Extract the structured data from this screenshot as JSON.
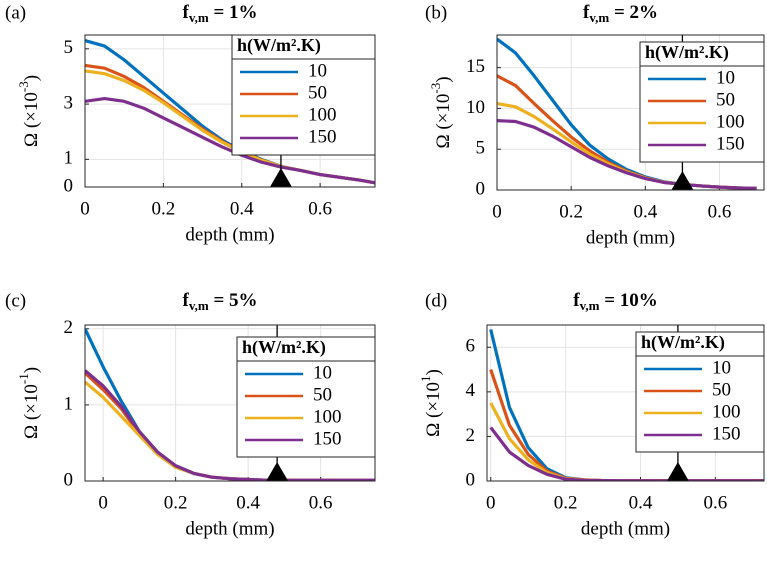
{
  "chart_data": [
    {
      "type": "line",
      "panel_label": "(a)",
      "title": {
        "text": "f",
        "sub": "v,m",
        "after": " = 1%"
      },
      "ylabel": {
        "text": "Ω (×10",
        "sup": "-3",
        "after": ")"
      },
      "xlabel": "depth (mm)",
      "x": [
        0,
        0.05,
        0.1,
        0.15,
        0.2,
        0.25,
        0.3,
        0.35,
        0.4,
        0.45,
        0.5,
        0.55,
        0.6,
        0.65,
        0.7,
        0.74
      ],
      "series": [
        {
          "name": "10",
          "color": "#0072BD",
          "values": [
            5.3,
            5.1,
            4.6,
            4.0,
            3.4,
            2.8,
            2.2,
            1.7,
            1.3,
            1.0,
            0.75,
            0.6,
            0.45,
            0.35,
            0.25,
            0.15
          ]
        },
        {
          "name": "50",
          "color": "#D95319",
          "values": [
            4.4,
            4.3,
            4.0,
            3.6,
            3.1,
            2.6,
            2.1,
            1.65,
            1.28,
            0.98,
            0.74,
            0.6,
            0.45,
            0.35,
            0.25,
            0.15
          ]
        },
        {
          "name": "100",
          "color": "#EDB120",
          "values": [
            4.2,
            4.1,
            3.85,
            3.5,
            3.05,
            2.55,
            2.05,
            1.62,
            1.26,
            0.97,
            0.74,
            0.6,
            0.45,
            0.35,
            0.25,
            0.15
          ]
        },
        {
          "name": "150",
          "color": "#7E2F8E",
          "values": [
            3.1,
            3.2,
            3.1,
            2.85,
            2.5,
            2.15,
            1.8,
            1.45,
            1.15,
            0.9,
            0.72,
            0.6,
            0.45,
            0.35,
            0.25,
            0.15
          ]
        }
      ],
      "xlim": [
        0,
        0.74
      ],
      "xticks": [
        0,
        0.2,
        0.4,
        0.6
      ],
      "ylim": [
        0,
        5.5
      ],
      "yticks": [
        0,
        1,
        3,
        5
      ],
      "grid": true,
      "legend_title": "h(W/m².K)",
      "legend": "northeast",
      "marker_x": 0.5
    },
    {
      "type": "line",
      "panel_label": "(b)",
      "title": {
        "text": "f",
        "sub": "v,m",
        "after": " = 2%"
      },
      "ylabel": {
        "text": "Ω (×10",
        "sup": "-3",
        "after": ")"
      },
      "xlabel": "depth (mm)",
      "x": [
        0,
        0.05,
        0.1,
        0.15,
        0.2,
        0.25,
        0.3,
        0.35,
        0.4,
        0.45,
        0.5,
        0.55,
        0.6,
        0.65,
        0.7
      ],
      "series": [
        {
          "name": "10",
          "color": "#0072BD",
          "values": [
            18.5,
            16.8,
            14,
            11,
            8,
            5.5,
            3.8,
            2.5,
            1.6,
            1.0,
            0.7,
            0.5,
            0.35,
            0.25,
            0.2
          ]
        },
        {
          "name": "50",
          "color": "#D95319",
          "values": [
            14,
            12.8,
            10.6,
            8.5,
            6.5,
            4.8,
            3.4,
            2.3,
            1.5,
            0.95,
            0.7,
            0.5,
            0.35,
            0.25,
            0.2
          ]
        },
        {
          "name": "100",
          "color": "#EDB120",
          "values": [
            10.6,
            10.2,
            9,
            7.5,
            5.9,
            4.4,
            3.2,
            2.2,
            1.45,
            0.95,
            0.7,
            0.5,
            0.35,
            0.25,
            0.2
          ]
        },
        {
          "name": "150",
          "color": "#7E2F8E",
          "values": [
            8.5,
            8.4,
            7.7,
            6.6,
            5.3,
            4.0,
            2.95,
            2.1,
            1.4,
            0.92,
            0.7,
            0.5,
            0.35,
            0.25,
            0.2
          ]
        }
      ],
      "xlim": [
        0,
        0.72
      ],
      "xticks": [
        0,
        0.2,
        0.4,
        0.6
      ],
      "ylim": [
        0,
        19
      ],
      "yticks": [
        0,
        5,
        10,
        15
      ],
      "grid": true,
      "legend_title": "h(W/m².K)",
      "legend": "northeast",
      "marker_x": 0.5
    },
    {
      "type": "line",
      "panel_label": "(c)",
      "title": {
        "text": "f",
        "sub": "v,m",
        "after": " = 5%"
      },
      "ylabel": {
        "text": "Ω (×10",
        "sup": "-1",
        "after": ")"
      },
      "xlabel": "depth (mm)",
      "x": [
        -0.05,
        0,
        0.05,
        0.1,
        0.15,
        0.2,
        0.25,
        0.3,
        0.35,
        0.4,
        0.45,
        0.5,
        0.55,
        0.6,
        0.65,
        0.7,
        0.75
      ],
      "series": [
        {
          "name": "10",
          "color": "#0072BD",
          "values": [
            2.0,
            1.5,
            1.05,
            0.65,
            0.38,
            0.2,
            0.1,
            0.05,
            0.03,
            0.02,
            0.01,
            0.01,
            0.01,
            0.01,
            0.01,
            0.01,
            0.01
          ]
        },
        {
          "name": "50",
          "color": "#D95319",
          "values": [
            1.42,
            1.2,
            0.95,
            0.62,
            0.36,
            0.19,
            0.1,
            0.05,
            0.03,
            0.02,
            0.01,
            0.01,
            0.01,
            0.01,
            0.01,
            0.01,
            0.01
          ]
        },
        {
          "name": "100",
          "color": "#EDB120",
          "values": [
            1.3,
            1.1,
            0.85,
            0.6,
            0.35,
            0.18,
            0.1,
            0.05,
            0.03,
            0.02,
            0.01,
            0.01,
            0.01,
            0.01,
            0.01,
            0.01,
            0.01
          ]
        },
        {
          "name": "150",
          "color": "#7E2F8E",
          "values": [
            1.45,
            1.25,
            0.98,
            0.65,
            0.38,
            0.2,
            0.1,
            0.05,
            0.03,
            0.02,
            0.01,
            0.01,
            0.01,
            0.01,
            0.01,
            0.01,
            0.01
          ]
        }
      ],
      "xlim": [
        -0.05,
        0.75
      ],
      "xticks": [
        0,
        0.2,
        0.4,
        0.6
      ],
      "ylim": [
        0,
        2.05
      ],
      "yticks": [
        0,
        1,
        2
      ],
      "grid": true,
      "legend_title": "h(W/m².K)",
      "legend": "northeast",
      "marker_x": 0.48
    },
    {
      "type": "line",
      "panel_label": "(d)",
      "title": {
        "text": "f",
        "sub": "v,m",
        "after": " = 10%"
      },
      "ylabel": {
        "text": "Ω (×10",
        "sup": "1",
        "after": ")"
      },
      "xlabel": "depth (mm)",
      "x": [
        0,
        0.05,
        0.1,
        0.15,
        0.2,
        0.25,
        0.3,
        0.35,
        0.4,
        0.45,
        0.5,
        0.55,
        0.6,
        0.65,
        0.7,
        0.73
      ],
      "series": [
        {
          "name": "10",
          "color": "#0072BD",
          "values": [
            6.8,
            3.3,
            1.5,
            0.55,
            0.15,
            0.05,
            0.02,
            0.01,
            0.01,
            0.01,
            0.01,
            0.01,
            0.01,
            0.01,
            0.01,
            0.01
          ]
        },
        {
          "name": "50",
          "color": "#D95319",
          "values": [
            5.0,
            2.5,
            1.2,
            0.45,
            0.12,
            0.05,
            0.02,
            0.01,
            0.01,
            0.01,
            0.01,
            0.01,
            0.01,
            0.01,
            0.01,
            0.01
          ]
        },
        {
          "name": "100",
          "color": "#EDB120",
          "values": [
            3.5,
            1.9,
            0.95,
            0.38,
            0.1,
            0.04,
            0.02,
            0.01,
            0.01,
            0.01,
            0.01,
            0.01,
            0.01,
            0.01,
            0.01,
            0.01
          ]
        },
        {
          "name": "150",
          "color": "#7E2F8E",
          "values": [
            2.4,
            1.3,
            0.7,
            0.3,
            0.08,
            0.03,
            0.02,
            0.01,
            0.01,
            0.01,
            0.01,
            0.01,
            0.01,
            0.01,
            0.01,
            0.01
          ]
        }
      ],
      "xlim": [
        -0.01,
        0.73
      ],
      "xticks": [
        0,
        0.2,
        0.4,
        0.6
      ],
      "ylim": [
        0,
        7
      ],
      "yticks": [
        0,
        2,
        4,
        6
      ],
      "grid": true,
      "legend_title": "h(W/m².K)",
      "legend": "northeast",
      "marker_x": 0.5
    }
  ]
}
